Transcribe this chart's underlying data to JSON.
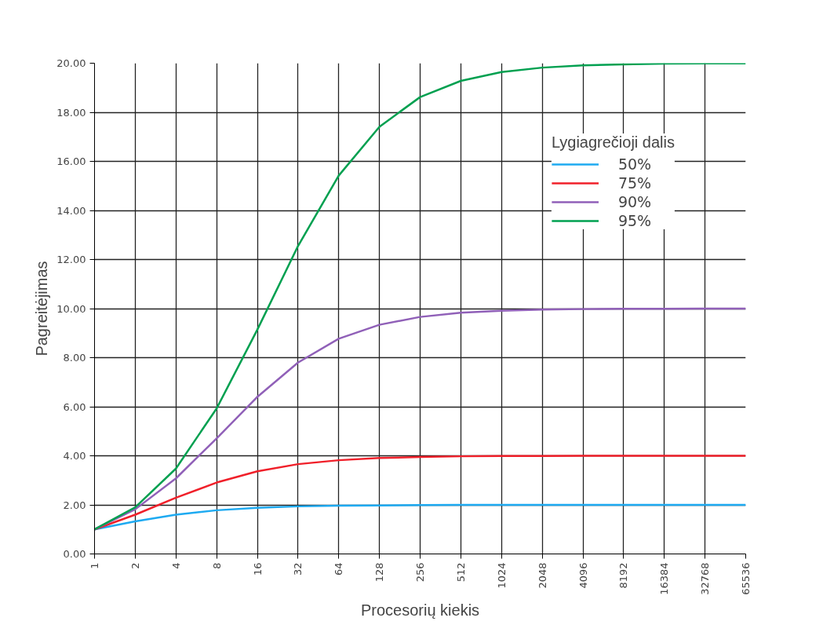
{
  "chart_data": {
    "type": "line",
    "xlabel": "Procesorių kiekis",
    "ylabel": "Pagreitėjimas",
    "legend_title": "Lygiagrečioji dalis",
    "log": "x",
    "grid": true,
    "legend": "top right",
    "marker": "none",
    "line_style": "solid",
    "x": [
      1,
      2,
      4,
      8,
      16,
      32,
      64,
      128,
      256,
      512,
      1024,
      2048,
      4096,
      8192,
      16384,
      32768,
      65536
    ],
    "xlim": [
      1,
      65536
    ],
    "xticks": [
      1,
      2,
      4,
      8,
      16,
      32,
      64,
      128,
      256,
      512,
      1024,
      2048,
      4096,
      8192,
      16384,
      32768,
      65536
    ],
    "ylim": [
      0,
      20
    ],
    "yticks": [
      {
        "value": 0,
        "label": "0.00"
      },
      {
        "value": 2,
        "label": "2.00"
      },
      {
        "value": 4,
        "label": "4.00"
      },
      {
        "value": 6,
        "label": "6.00"
      },
      {
        "value": 8,
        "label": "8.00"
      },
      {
        "value": 10,
        "label": "10.00"
      },
      {
        "value": 12,
        "label": "12.00"
      },
      {
        "value": 14,
        "label": "14.00"
      },
      {
        "value": 16,
        "label": "16.00"
      },
      {
        "value": 18,
        "label": "18.00"
      },
      {
        "value": 20,
        "label": "20.00"
      }
    ],
    "series": [
      {
        "name": "50%",
        "color": "#1eaaf1",
        "values": [
          1.0,
          1.33,
          1.6,
          1.78,
          1.88,
          1.94,
          1.97,
          1.98,
          1.99,
          2.0,
          2.0,
          2.0,
          2.0,
          2.0,
          2.0,
          2.0,
          2.0
        ]
      },
      {
        "name": "75%",
        "color": "#f0202a",
        "values": [
          1.0,
          1.6,
          2.29,
          2.91,
          3.37,
          3.66,
          3.82,
          3.91,
          3.95,
          3.98,
          3.99,
          3.99,
          4.0,
          4.0,
          4.0,
          4.0,
          4.0
        ]
      },
      {
        "name": "90%",
        "color": "#9060b8",
        "values": [
          1.0,
          1.82,
          3.08,
          4.71,
          6.4,
          7.8,
          8.77,
          9.34,
          9.66,
          9.83,
          9.91,
          9.96,
          9.98,
          9.99,
          9.99,
          10.0,
          10.0
        ]
      },
      {
        "name": "95%",
        "color": "#00a050",
        "values": [
          1.0,
          1.9,
          3.48,
          5.93,
          9.14,
          12.55,
          15.42,
          17.41,
          18.62,
          19.28,
          19.64,
          19.82,
          19.91,
          19.95,
          19.98,
          19.99,
          19.99
        ]
      }
    ]
  }
}
